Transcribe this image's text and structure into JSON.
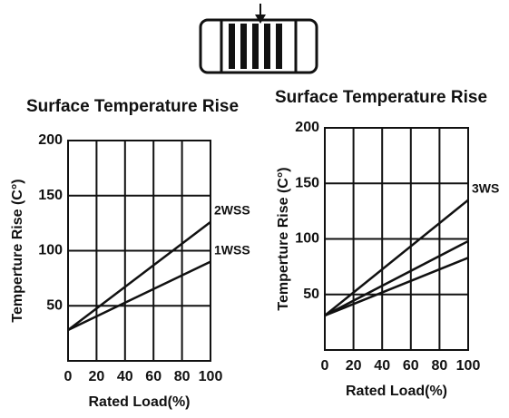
{
  "chart_data": [
    {
      "type": "line",
      "title": "Surface Temperature Rise",
      "x_label": "Rated Load(%)",
      "y_label": "Temperture Rise (C°)",
      "x": [
        0,
        100
      ],
      "xlim": [
        0,
        100
      ],
      "xticks": [
        0,
        20,
        40,
        60,
        80,
        100
      ],
      "ylim": [
        0,
        200
      ],
      "yticks": [
        50,
        100,
        150,
        200
      ],
      "grid": true,
      "series": [
        {
          "name": "2WSS",
          "color": "#111111",
          "values": [
            28,
            126
          ]
        },
        {
          "name": "1WSS",
          "color": "#111111",
          "values": [
            28,
            90
          ]
        }
      ]
    },
    {
      "type": "line",
      "title": "Surface Temperature Rise",
      "x_label": "Rated Load(%)",
      "y_label": "Temperture Rise (C°)",
      "x": [
        0,
        100
      ],
      "xlim": [
        0,
        100
      ],
      "xticks": [
        0,
        20,
        40,
        60,
        80,
        100
      ],
      "ylim": [
        0,
        200
      ],
      "yticks": [
        50,
        100,
        150,
        200
      ],
      "grid": true,
      "series": [
        {
          "name": "3WS",
          "color": "#111111",
          "values": [
            31,
            135
          ]
        },
        {
          "color": "#111111",
          "values": [
            31,
            98
          ]
        },
        {
          "color": "#111111",
          "values": [
            31,
            83
          ]
        }
      ]
    }
  ]
}
